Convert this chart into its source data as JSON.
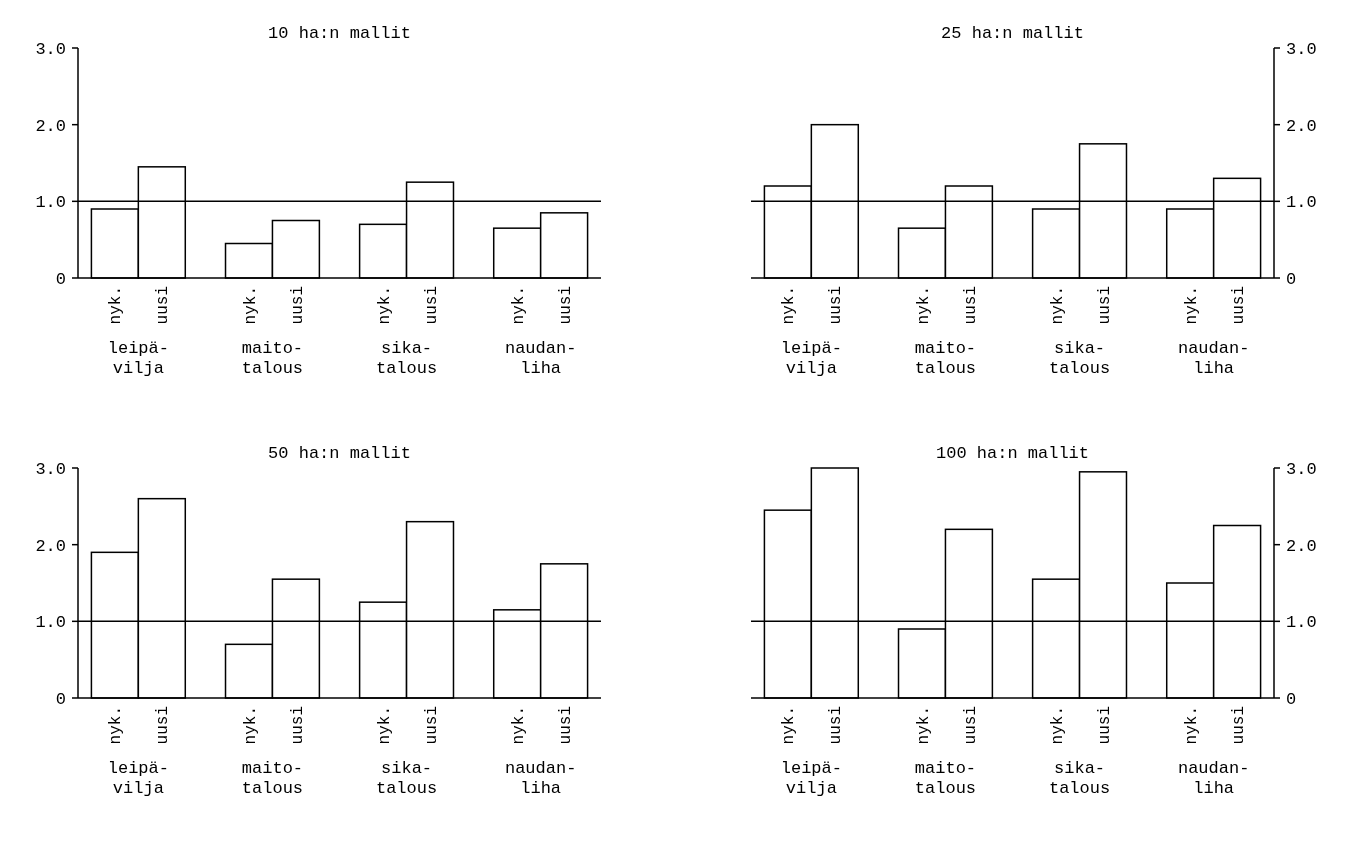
{
  "chart_data": [
    {
      "type": "bar",
      "title": "10 ha:n mallit",
      "categories": [
        "leipä-\nvilja",
        "maito-\ntalous",
        "sika-\ntalous",
        "naudan-\nliha"
      ],
      "series": [
        {
          "name": "nyk.",
          "color": "#ffffff",
          "values": [
            0.9,
            0.45,
            0.7,
            0.65
          ]
        },
        {
          "name": "uusi",
          "color": "#ffffff",
          "values": [
            1.45,
            0.75,
            1.25,
            0.85
          ]
        }
      ],
      "ylim": [
        0,
        3
      ],
      "yticks": [
        0,
        {
          "value": 1,
          "label": "1.0"
        },
        {
          "value": 2,
          "label": "2.0"
        },
        {
          "value": 3,
          "label": "3.0"
        }
      ],
      "ref_lines": [
        {
          "axis": "y",
          "value": 1
        }
      ]
    },
    {
      "type": "bar",
      "title": "25 ha:n mallit",
      "categories": [
        "leipä-\nvilja",
        "maito-\ntalous",
        "sika-\ntalous",
        "naudan-\nliha"
      ],
      "series": [
        {
          "name": "nyk.",
          "color": "#ffffff",
          "axis": "y2",
          "values": [
            1.2,
            0.65,
            0.9,
            0.9
          ]
        },
        {
          "name": "uusi",
          "color": "#ffffff",
          "axis": "y2",
          "values": [
            2.0,
            1.2,
            1.75,
            1.3
          ]
        }
      ],
      "y2lim": [
        0,
        3
      ],
      "y2ticks": [
        0,
        {
          "value": 1,
          "label": "1.0"
        },
        {
          "value": 2,
          "label": "2.0"
        },
        {
          "value": 3,
          "label": "3.0"
        }
      ],
      "ref_lines": [
        {
          "axis": "y2",
          "value": 1
        }
      ]
    },
    {
      "type": "bar",
      "title": "50 ha:n mallit",
      "categories": [
        "leipä-\nvilja",
        "maito-\ntalous",
        "sika-\ntalous",
        "naudan-\nliha"
      ],
      "series": [
        {
          "name": "nyk.",
          "color": "#ffffff",
          "values": [
            1.9,
            0.7,
            1.25,
            1.15
          ]
        },
        {
          "name": "uusi",
          "color": "#ffffff",
          "values": [
            2.6,
            1.55,
            2.3,
            1.75
          ]
        }
      ],
      "ylim": [
        0,
        3
      ],
      "yticks": [
        0,
        {
          "value": 1,
          "label": "1.0"
        },
        {
          "value": 2,
          "label": "2.0"
        },
        {
          "value": 3,
          "label": "3.0"
        }
      ],
      "ref_lines": [
        {
          "axis": "y",
          "value": 1
        }
      ]
    },
    {
      "type": "bar",
      "title": "100 ha:n mallit",
      "categories": [
        "leipä-\nvilja",
        "maito-\ntalous",
        "sika-\ntalous",
        "naudan-\nliha"
      ],
      "series": [
        {
          "name": "nyk.",
          "color": "#ffffff",
          "axis": "y2",
          "values": [
            2.45,
            0.9,
            1.55,
            1.5
          ]
        },
        {
          "name": "uusi",
          "color": "#ffffff",
          "axis": "y2",
          "values": [
            3.0,
            2.2,
            2.95,
            2.25
          ]
        }
      ],
      "y2lim": [
        0,
        3
      ],
      "y2ticks": [
        0,
        {
          "value": 1,
          "label": "1.0"
        },
        {
          "value": 2,
          "label": "2.0"
        },
        {
          "value": 3,
          "label": "3.0"
        }
      ],
      "ref_lines": [
        {
          "axis": "y2",
          "value": 1
        }
      ]
    }
  ]
}
